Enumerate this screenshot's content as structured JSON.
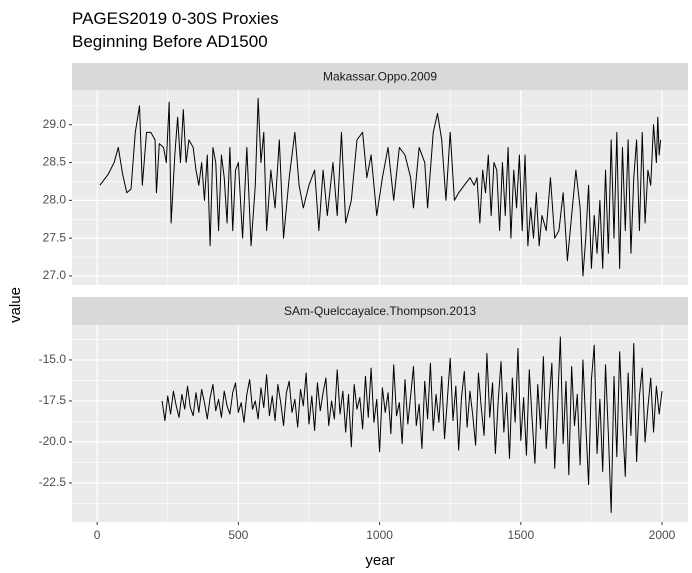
{
  "chart_data": {
    "type": "line",
    "title": "PAGES2019 0-30S Proxies",
    "subtitle": "Beginning Before AD1500",
    "x_label": "year",
    "y_label": "value",
    "color": "#000000",
    "grid": true,
    "xlim": [
      -89,
      2092
    ],
    "xticks": [
      0,
      500,
      1000,
      1500,
      2000
    ],
    "minor_xticks": [
      250,
      750,
      1250,
      1750
    ],
    "panels": [
      {
        "name": "Makassar.Oppo.2009",
        "ylim": [
          26.88,
          29.46
        ],
        "yticks": [
          {
            "value": 27,
            "label": "27.0"
          },
          {
            "value": 27.5,
            "label": "27.5"
          },
          {
            "value": 28,
            "label": "28.0"
          },
          {
            "value": 28.5,
            "label": "28.5"
          },
          {
            "value": 29,
            "label": "29.0"
          }
        ],
        "minor_yticks": [
          27.25,
          27.75,
          28.25,
          28.75,
          29.25
        ],
        "x": [
          10,
          40,
          60,
          75,
          90,
          105,
          120,
          135,
          150,
          160,
          175,
          190,
          205,
          210,
          220,
          235,
          245,
          255,
          262,
          275,
          285,
          295,
          305,
          315,
          325,
          340,
          350,
          360,
          370,
          380,
          390,
          400,
          410,
          420,
          430,
          440,
          450,
          460,
          470,
          480,
          490,
          500,
          515,
          530,
          545,
          560,
          570,
          580,
          590,
          600,
          615,
          630,
          645,
          660,
          680,
          700,
          715,
          730,
          750,
          770,
          785,
          800,
          815,
          835,
          850,
          865,
          880,
          900,
          920,
          940,
          955,
          970,
          990,
          1010,
          1030,
          1050,
          1070,
          1090,
          1110,
          1120,
          1140,
          1160,
          1170,
          1190,
          1205,
          1220,
          1235,
          1250,
          1265,
          1280,
          1300,
          1320,
          1335,
          1345,
          1355,
          1365,
          1375,
          1385,
          1395,
          1405,
          1415,
          1425,
          1435,
          1445,
          1455,
          1465,
          1475,
          1485,
          1495,
          1505,
          1515,
          1525,
          1535,
          1545,
          1555,
          1565,
          1575,
          1590,
          1605,
          1620,
          1635,
          1650,
          1665,
          1680,
          1695,
          1710,
          1720,
          1730,
          1740,
          1750,
          1760,
          1770,
          1780,
          1790,
          1800,
          1810,
          1820,
          1830,
          1840,
          1850,
          1860,
          1870,
          1880,
          1890,
          1900,
          1910,
          1920,
          1930,
          1940,
          1950,
          1960,
          1970,
          1980,
          1985,
          1990,
          1995
        ],
        "values": [
          28.2,
          28.35,
          28.5,
          28.7,
          28.35,
          28.1,
          28.15,
          28.9,
          29.25,
          28.2,
          28.9,
          28.9,
          28.8,
          28.1,
          28.75,
          28.7,
          28.5,
          29.3,
          27.7,
          28.6,
          29.1,
          28.5,
          29.2,
          28.5,
          28.8,
          28.7,
          28.4,
          28.2,
          28.5,
          28.0,
          28.6,
          27.4,
          28.7,
          28.5,
          27.6,
          28.6,
          28.3,
          27.7,
          28.7,
          27.6,
          28.4,
          28.5,
          27.5,
          28.7,
          27.4,
          28.2,
          29.35,
          28.5,
          28.9,
          27.6,
          28.4,
          27.9,
          28.8,
          27.5,
          28.3,
          28.9,
          28.2,
          27.9,
          28.2,
          28.4,
          27.6,
          28.4,
          27.8,
          28.5,
          27.8,
          28.9,
          27.7,
          28.0,
          28.8,
          28.9,
          28.3,
          28.6,
          27.8,
          28.3,
          28.7,
          28.0,
          28.7,
          28.6,
          28.3,
          27.9,
          28.7,
          28.5,
          27.9,
          28.9,
          29.15,
          28.8,
          28.0,
          28.9,
          28.0,
          28.1,
          28.2,
          28.3,
          28.2,
          28.3,
          27.7,
          28.4,
          28.1,
          28.6,
          27.8,
          28.5,
          28.4,
          27.6,
          28.5,
          27.8,
          28.7,
          27.5,
          28.4,
          27.9,
          28.6,
          27.6,
          28.6,
          27.4,
          27.9,
          27.5,
          28.1,
          27.4,
          27.8,
          27.6,
          28.3,
          27.5,
          27.6,
          28.1,
          27.2,
          27.8,
          28.4,
          27.9,
          27.0,
          27.5,
          28.2,
          27.1,
          27.8,
          27.3,
          28.0,
          27.1,
          28.4,
          27.3,
          28.8,
          27.5,
          28.9,
          27.1,
          28.7,
          27.6,
          28.8,
          27.3,
          28.3,
          28.8,
          27.6,
          28.9,
          27.7,
          28.4,
          28.2,
          29.0,
          28.5,
          29.1,
          28.6,
          28.8
        ]
      },
      {
        "name": "SAm-Quelccayalce.Thompson.2013",
        "ylim": [
          -24.88,
          -12.87
        ],
        "yticks": [
          {
            "value": -22.5,
            "label": "-22.5"
          },
          {
            "value": -20,
            "label": "-20.0"
          },
          {
            "value": -17.5,
            "label": "-17.5"
          },
          {
            "value": -15,
            "label": "-15.0"
          }
        ],
        "minor_yticks": [
          -23.75,
          -21.25,
          -18.75,
          -16.25,
          -13.75
        ],
        "x": [
          230,
          240,
          250,
          260,
          270,
          280,
          290,
          300,
          310,
          320,
          330,
          340,
          350,
          360,
          370,
          380,
          390,
          400,
          410,
          420,
          430,
          440,
          450,
          460,
          470,
          480,
          490,
          500,
          510,
          520,
          530,
          540,
          550,
          560,
          570,
          580,
          590,
          600,
          610,
          620,
          630,
          640,
          650,
          660,
          670,
          680,
          690,
          700,
          710,
          720,
          730,
          740,
          750,
          760,
          770,
          780,
          790,
          800,
          810,
          820,
          830,
          840,
          850,
          860,
          870,
          880,
          890,
          900,
          910,
          920,
          930,
          940,
          950,
          960,
          970,
          980,
          990,
          1000,
          1010,
          1020,
          1030,
          1040,
          1050,
          1060,
          1070,
          1080,
          1090,
          1100,
          1110,
          1120,
          1130,
          1140,
          1150,
          1160,
          1170,
          1180,
          1190,
          1200,
          1210,
          1220,
          1230,
          1240,
          1250,
          1260,
          1270,
          1280,
          1290,
          1300,
          1310,
          1320,
          1330,
          1340,
          1350,
          1360,
          1370,
          1380,
          1390,
          1400,
          1410,
          1420,
          1430,
          1440,
          1450,
          1460,
          1470,
          1480,
          1490,
          1500,
          1510,
          1520,
          1530,
          1540,
          1550,
          1560,
          1570,
          1580,
          1590,
          1600,
          1610,
          1620,
          1630,
          1640,
          1650,
          1660,
          1670,
          1680,
          1690,
          1700,
          1710,
          1720,
          1730,
          1740,
          1750,
          1760,
          1770,
          1780,
          1790,
          1800,
          1810,
          1820,
          1830,
          1840,
          1850,
          1860,
          1870,
          1880,
          1890,
          1900,
          1910,
          1920,
          1930,
          1940,
          1950,
          1960,
          1970,
          1980,
          1990,
          2000
        ],
        "values": [
          -17.5,
          -18.7,
          -17.2,
          -18.3,
          -16.9,
          -17.8,
          -18.5,
          -17.1,
          -18.0,
          -16.6,
          -17.9,
          -18.4,
          -17.0,
          -18.2,
          -16.8,
          -17.6,
          -18.6,
          -17.3,
          -16.5,
          -18.1,
          -17.4,
          -18.5,
          -16.9,
          -17.8,
          -18.3,
          -17.0,
          -16.4,
          -18.2,
          -17.6,
          -18.8,
          -17.1,
          -16.2,
          -18.0,
          -17.5,
          -18.6,
          -16.7,
          -17.9,
          -15.9,
          -18.4,
          -17.2,
          -18.7,
          -16.5,
          -17.6,
          -19.0,
          -17.0,
          -16.3,
          -18.2,
          -17.4,
          -19.1,
          -16.8,
          -17.8,
          -15.8,
          -18.9,
          -17.2,
          -19.3,
          -16.4,
          -18.1,
          -17.0,
          -16.1,
          -19.0,
          -17.5,
          -18.6,
          -15.6,
          -18.3,
          -16.9,
          -19.4,
          -17.1,
          -20.3,
          -16.5,
          -18.0,
          -17.3,
          -19.2,
          -16.0,
          -18.5,
          -15.5,
          -18.8,
          -17.4,
          -20.6,
          -16.7,
          -18.2,
          -17.0,
          -19.5,
          -15.3,
          -18.4,
          -17.6,
          -20.1,
          -16.2,
          -18.9,
          -17.2,
          -15.4,
          -19.0,
          -17.7,
          -20.4,
          -16.3,
          -18.6,
          -15.2,
          -19.3,
          -17.1,
          -18.8,
          -16.0,
          -19.8,
          -17.4,
          -14.9,
          -18.7,
          -16.6,
          -20.5,
          -17.3,
          -15.7,
          -19.1,
          -16.9,
          -18.4,
          -20.2,
          -15.8,
          -17.9,
          -19.6,
          -14.6,
          -18.5,
          -16.4,
          -20.7,
          -17.5,
          -15.1,
          -19.4,
          -17.0,
          -21.0,
          -16.1,
          -18.8,
          -14.3,
          -19.9,
          -17.3,
          -20.8,
          -15.6,
          -18.6,
          -21.3,
          -16.5,
          -19.2,
          -14.8,
          -20.4,
          -17.6,
          -15.2,
          -21.6,
          -17.8,
          -13.6,
          -20.1,
          -16.3,
          -22.0,
          -15.4,
          -19.0,
          -17.1,
          -21.4,
          -15.0,
          -18.9,
          -22.6,
          -16.2,
          -14.1,
          -20.7,
          -17.4,
          -21.8,
          -15.3,
          -19.5,
          -24.3,
          -16.0,
          -20.9,
          -14.5,
          -18.7,
          -22.1,
          -15.8,
          -19.6,
          -14.0,
          -21.2,
          -17.2,
          -15.5,
          -20.0,
          -17.9,
          -16.1,
          -19.4,
          -16.6,
          -18.3,
          -16.9
        ]
      }
    ]
  }
}
